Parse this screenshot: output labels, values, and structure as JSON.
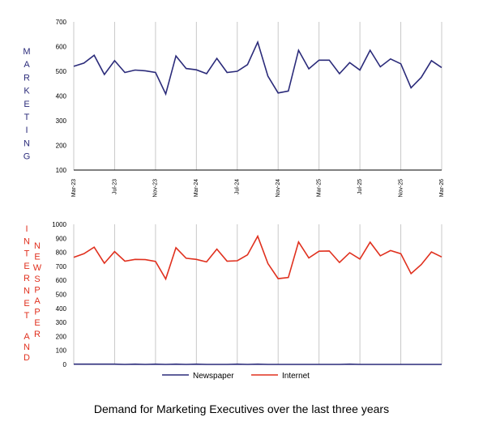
{
  "caption": "Demand for Marketing Executives over the last three years",
  "colors": {
    "marketing": "#2b2b7a",
    "internet": "#e0301e",
    "newspaper": "#2b2b7a",
    "grid": "#c8c8c8",
    "axis": "#000000"
  },
  "chart_data": [
    {
      "type": "line",
      "ylabel": "MARKETING",
      "ylim": [
        100,
        700
      ],
      "yticks": [
        100,
        200,
        300,
        400,
        500,
        600,
        700
      ],
      "x_tick_labels": [
        "Mar-23",
        "Jul-23",
        "Nov-23",
        "Mar-24",
        "Jul-24",
        "Nov-24",
        "Mar-25",
        "Jul-25",
        "Nov-25",
        "Mar-26"
      ],
      "x": [
        "Mar-23",
        "Apr-23",
        "May-23",
        "Jun-23",
        "Jul-23",
        "Aug-23",
        "Sep-23",
        "Oct-23",
        "Nov-23",
        "Dec-23",
        "Jan-24",
        "Feb-24",
        "Mar-24",
        "Apr-24",
        "May-24",
        "Jun-24",
        "Jul-24",
        "Aug-24",
        "Sep-24",
        "Oct-24",
        "Nov-24",
        "Dec-24",
        "Jan-25",
        "Feb-25",
        "Mar-25",
        "Apr-25",
        "May-25",
        "Jun-25",
        "Jul-25",
        "Aug-25",
        "Sep-25",
        "Oct-25",
        "Nov-25",
        "Dec-25",
        "Jan-26",
        "Feb-26",
        "Mar-26"
      ],
      "grid": true,
      "series": [
        {
          "values": [
            520,
            533,
            565,
            487,
            543,
            495,
            505,
            502,
            495,
            408,
            562,
            511,
            506,
            490,
            552,
            495,
            500,
            527,
            618,
            480,
            412,
            420,
            585,
            510,
            545,
            545,
            490,
            535,
            505,
            585,
            518,
            550,
            530,
            433,
            475,
            543,
            515
          ]
        }
      ]
    },
    {
      "type": "line",
      "ylabel": "INTERNET AND NEWSPAPER",
      "ylim": [
        0,
        1000
      ],
      "yticks": [
        0,
        100,
        200,
        300,
        400,
        500,
        600,
        700,
        800,
        900,
        1000
      ],
      "x": [
        "Mar-23",
        "Apr-23",
        "May-23",
        "Jun-23",
        "Jul-23",
        "Aug-23",
        "Sep-23",
        "Oct-23",
        "Nov-23",
        "Dec-23",
        "Jan-24",
        "Feb-24",
        "Mar-24",
        "Apr-24",
        "May-24",
        "Jun-24",
        "Jul-24",
        "Aug-24",
        "Sep-24",
        "Oct-24",
        "Nov-24",
        "Dec-24",
        "Jan-25",
        "Feb-25",
        "Mar-25",
        "Apr-25",
        "May-25",
        "Jun-25",
        "Jul-25",
        "Aug-25",
        "Sep-25",
        "Oct-25",
        "Nov-25",
        "Dec-25",
        "Jan-26",
        "Feb-26",
        "Mar-26"
      ],
      "grid": true,
      "legend_position": "bottom",
      "series": [
        {
          "name": "Newspaper",
          "values": [
            2,
            2,
            2,
            2,
            2,
            0,
            2,
            0,
            2,
            0,
            2,
            0,
            2,
            0,
            0,
            0,
            2,
            0,
            2,
            0,
            0,
            0,
            0,
            0,
            0,
            0,
            0,
            2,
            0,
            0,
            0,
            0,
            0,
            0,
            0,
            0,
            0
          ]
        },
        {
          "name": "Internet",
          "values": [
            765,
            790,
            837,
            722,
            805,
            737,
            750,
            748,
            735,
            610,
            833,
            758,
            750,
            732,
            823,
            737,
            740,
            782,
            915,
            720,
            612,
            620,
            874,
            760,
            808,
            810,
            728,
            797,
            752,
            872,
            775,
            813,
            790,
            648,
            713,
            803,
            767
          ]
        }
      ]
    }
  ]
}
